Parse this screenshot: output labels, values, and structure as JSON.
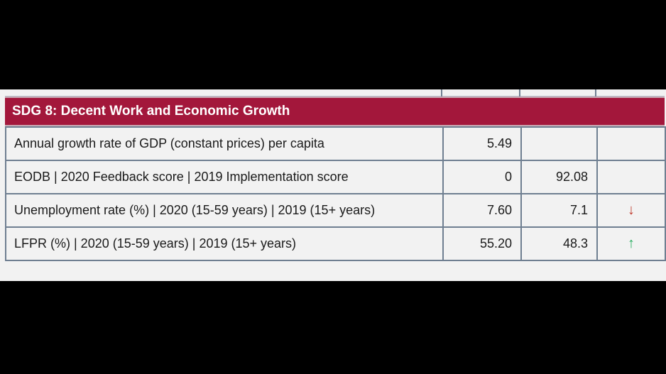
{
  "section": {
    "title": "SDG 8: Decent Work and Economic Growth"
  },
  "rows": [
    {
      "label": "Annual growth rate of GDP (constant prices) per capita",
      "value_2020": "5.49",
      "value_2019": "",
      "trend": ""
    },
    {
      "label": "EODB | 2020 Feedback score | 2019 Implementation score",
      "value_2020": "0",
      "value_2019": "92.08",
      "trend": ""
    },
    {
      "label": "Unemployment rate (%) | 2020 (15-59 years) | 2019 (15+ years)",
      "value_2020": "7.60",
      "value_2019": "7.1",
      "trend": "↓"
    },
    {
      "label": "LFPR (%) | 2020 (15-59 years) | 2019 (15+ years)",
      "value_2020": "55.20",
      "value_2019": "48.3",
      "trend": "↑"
    }
  ],
  "colors": {
    "header_bg": "#a3173b",
    "trend_down": "#c0392b",
    "trend_up": "#27ae60"
  }
}
